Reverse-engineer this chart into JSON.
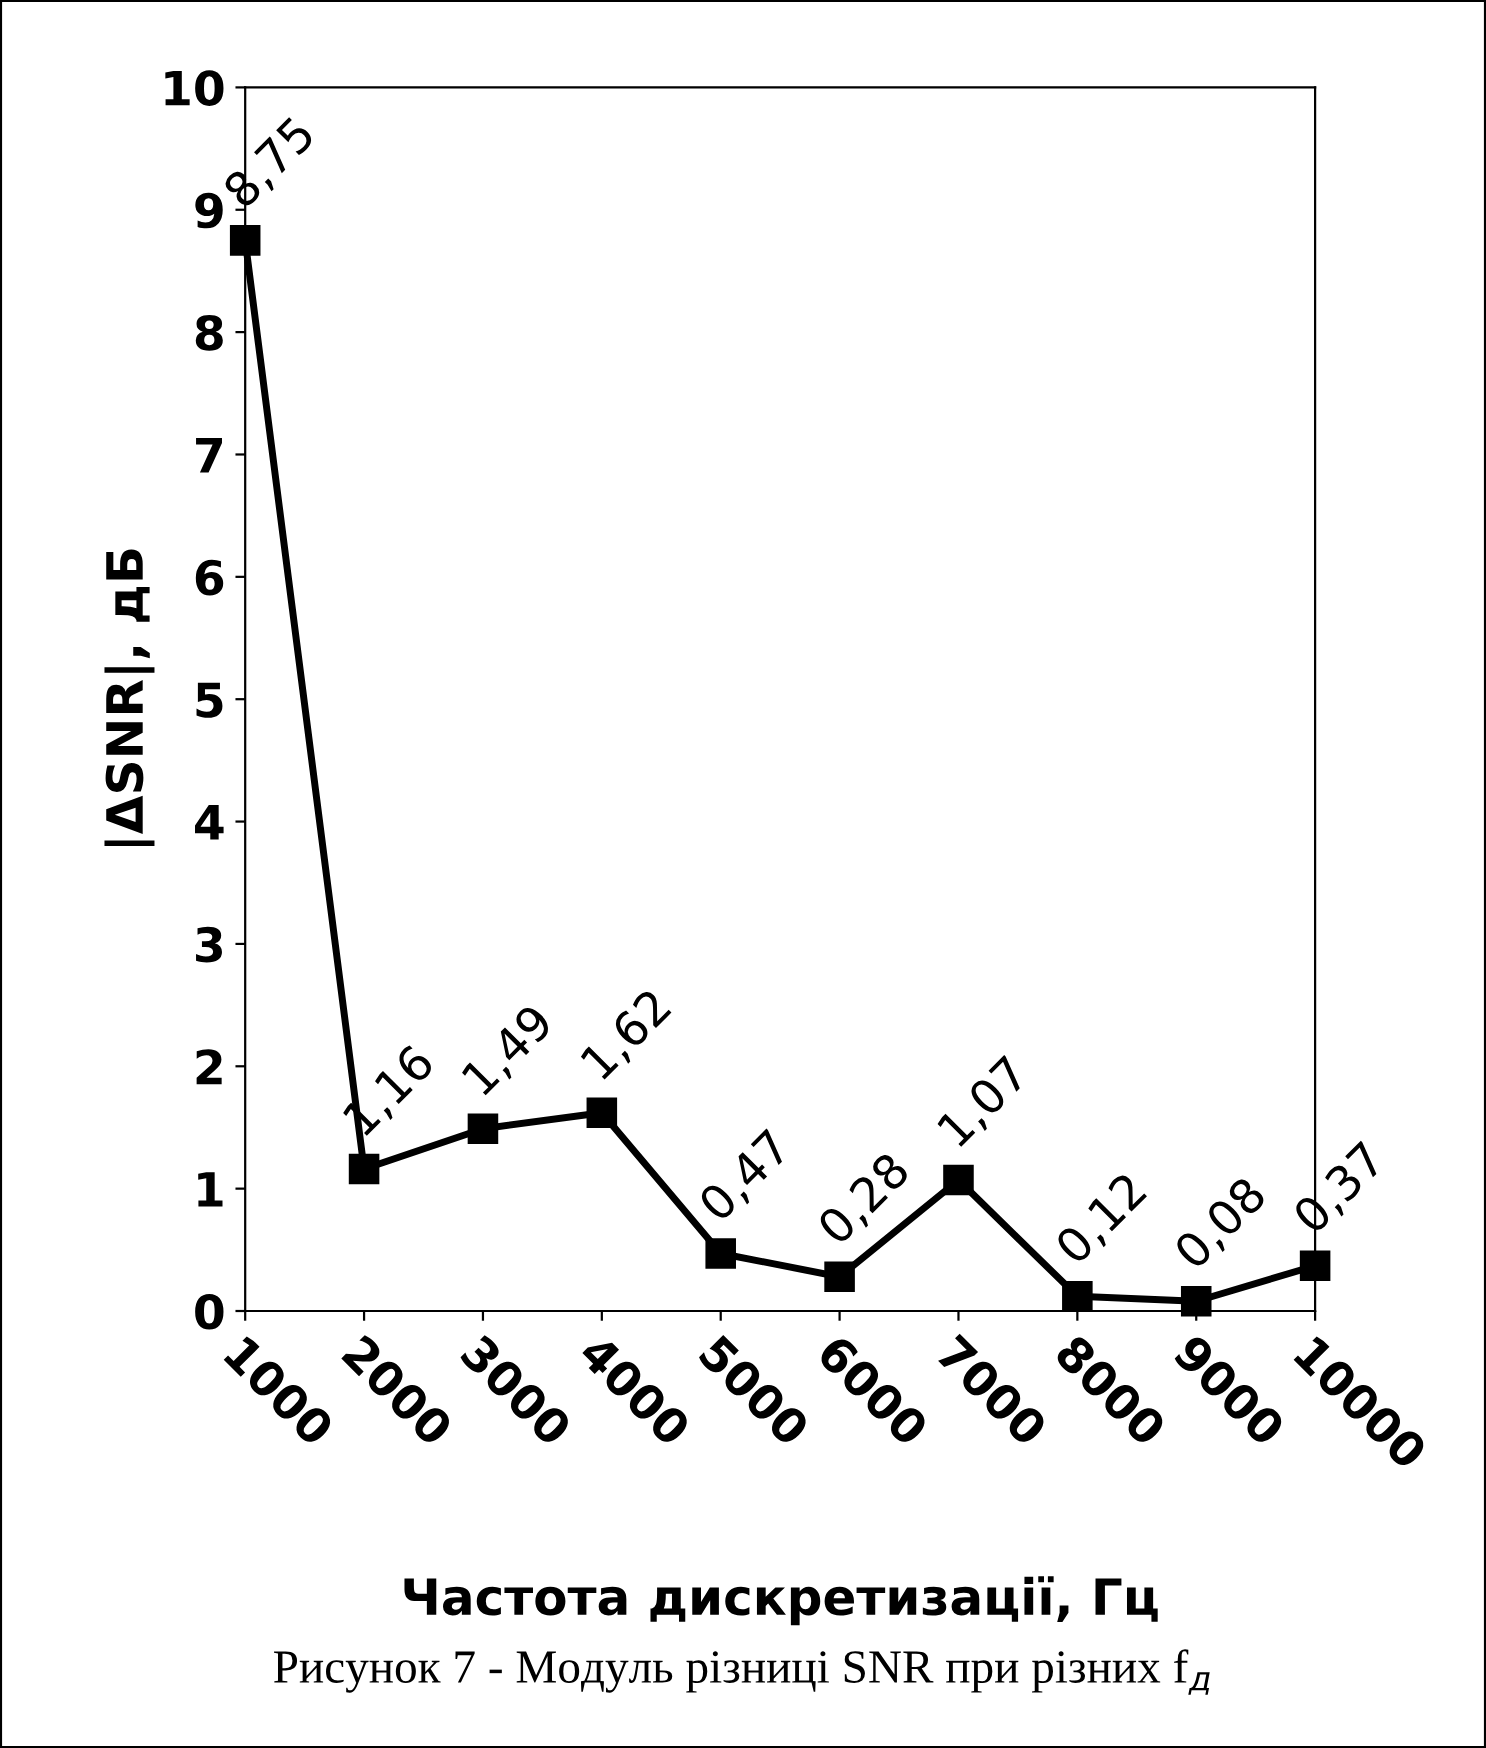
{
  "chart_data": {
    "type": "line",
    "x": [
      1000,
      2000,
      3000,
      4000,
      5000,
      6000,
      7000,
      8000,
      9000,
      10000
    ],
    "series": [
      {
        "color": "#000000",
        "values": [
          8.75,
          1.16,
          1.49,
          1.62,
          0.47,
          0.28,
          1.07,
          0.12,
          0.08,
          0.37
        ],
        "value_labels": [
          "8,75",
          "1,16",
          "1,49",
          "1,62",
          "0,47",
          "0,28",
          "1,07",
          "0,12",
          "0,08",
          "0,37"
        ]
      }
    ],
    "xlim": [
      1000,
      10000
    ],
    "xticks": [
      1000,
      2000,
      3000,
      4000,
      5000,
      6000,
      7000,
      8000,
      9000,
      10000
    ],
    "ylim": [
      0,
      10
    ],
    "yticks": [
      0,
      1,
      2,
      3,
      4,
      5,
      6,
      7,
      8,
      9,
      10
    ],
    "xlabel": "Частота дискретизації, Гц",
    "ylabel": "|ΔSNR|, дБ",
    "annotations": [
      "Рисунок 7 - Модуль різниці SNR при різних f$_{д}$"
    ],
    "marker": "square",
    "line_style": "solid",
    "grid": false,
    "legend": false
  }
}
